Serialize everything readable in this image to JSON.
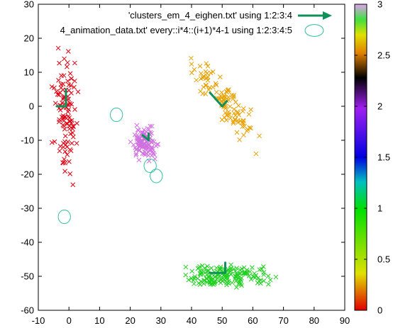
{
  "chart_data": {
    "type": "scatter",
    "title": "",
    "xlabel": "",
    "ylabel": "",
    "xlim": [
      -10,
      90
    ],
    "ylim": [
      -60,
      30
    ],
    "xticks": [
      -10,
      0,
      10,
      20,
      30,
      40,
      50,
      60,
      70,
      80,
      90
    ],
    "yticks": [
      -60,
      -50,
      -40,
      -30,
      -20,
      -10,
      0,
      10,
      20,
      30
    ],
    "grid": false,
    "legend_position": "top-right",
    "legend": [
      {
        "label": "'clusters_em_4_eighen.txt' using 1:2:3:4",
        "style": "vector",
        "color": "#10905a"
      },
      {
        "label": "4_animation_data.txt' every::i*4::(i+1)*4-1 using 1:2:3:4:5",
        "style": "ellipse",
        "color": "#30c0a0"
      }
    ],
    "colorbar": {
      "range": [
        0,
        3
      ],
      "ticks": [
        "0",
        "0.5",
        "1",
        "1.5",
        "2",
        "2.5",
        "3"
      ],
      "palette": "gnuplot rgbformulae 7,5,15-like: red-green-blue-purple-black-orange-yellow-green-violet"
    },
    "clusters": [
      {
        "id": 0,
        "color": "#e00010",
        "center": [
          -1,
          -2
        ],
        "spread": [
          2.5,
          12
        ],
        "count": 110
      },
      {
        "id": 1,
        "color": "#d070e0",
        "center": [
          25,
          -11
        ],
        "spread": [
          2.8,
          3
        ],
        "count": 110
      },
      {
        "id": 2,
        "color": "#e8a000",
        "center": [
          50,
          2
        ],
        "spread": [
          8,
          8
        ],
        "count": 110
      },
      {
        "id": 3,
        "color": "#20d020",
        "center": [
          52,
          -50
        ],
        "spread": [
          10,
          2.5
        ],
        "count": 160
      }
    ],
    "eigen_vectors": [
      {
        "x": -1,
        "y": 0,
        "dx": 0,
        "dy": 5
      },
      {
        "x": -1,
        "y": 0,
        "dx": -3,
        "dy": 0
      },
      {
        "x": 26,
        "y": -10,
        "dx": -2,
        "dy": 1.5
      },
      {
        "x": 26,
        "y": -10,
        "dx": 0,
        "dy": 2
      },
      {
        "x": 50,
        "y": 0,
        "dx": -4,
        "dy": 4
      },
      {
        "x": 50,
        "y": 0,
        "dx": 1.5,
        "dy": 1.5
      },
      {
        "x": 51,
        "y": -49,
        "dx": -5,
        "dy": 0
      },
      {
        "x": 51,
        "y": -49,
        "dx": 0,
        "dy": 3
      }
    ],
    "animation_ellipses": [
      {
        "x": 15.5,
        "y": -2.5,
        "w": 4,
        "h": 4
      },
      {
        "x": 26.5,
        "y": -17.5,
        "w": 4,
        "h": 4
      },
      {
        "x": 28.5,
        "y": -20.5,
        "w": 4,
        "h": 4
      },
      {
        "x": -1.5,
        "y": -32.5,
        "w": 4,
        "h": 4
      }
    ],
    "legend_ellipse": {
      "w": 6,
      "h": 3.5
    }
  }
}
